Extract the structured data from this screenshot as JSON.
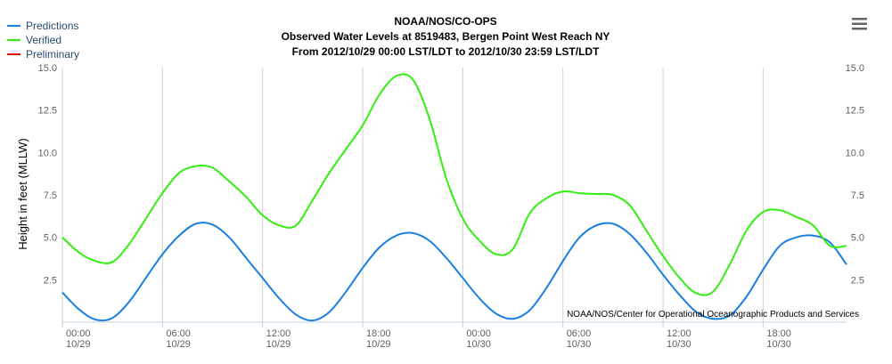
{
  "menu": {
    "icon": "menu-icon"
  },
  "credit": "NOAA/NOS/Center for Operational Oceanographic Products and Services",
  "chart_data": {
    "type": "line",
    "title": "NOAA/NOS/CO-OPS",
    "subtitle_lines": [
      "Observed Water Levels at 8519483, Bergen Point West Reach NY",
      "From 2012/10/29 00:00 LST/LDT to 2012/10/30 23:59 LST/LDT"
    ],
    "ylabel": "Height in feet (MLLW)",
    "ylim": [
      0,
      15
    ],
    "xlim_hours": [
      0,
      47
    ],
    "yticks": [
      "15.0",
      "12.5",
      "10.0",
      "7.5",
      "5.0",
      "2.5"
    ],
    "ytick_values": [
      15,
      12.5,
      10,
      7.5,
      5,
      2.5
    ],
    "xticks": [
      {
        "hour": 0,
        "time": "00:00",
        "date": "10/29"
      },
      {
        "hour": 6,
        "time": "06:00",
        "date": "10/29"
      },
      {
        "hour": 12,
        "time": "12:00",
        "date": "10/29"
      },
      {
        "hour": 18,
        "time": "18:00",
        "date": "10/29"
      },
      {
        "hour": 24,
        "time": "00:00",
        "date": "10/30"
      },
      {
        "hour": 30,
        "time": "06:00",
        "date": "10/30"
      },
      {
        "hour": 36,
        "time": "12:00",
        "date": "10/30"
      },
      {
        "hour": 42,
        "time": "18:00",
        "date": "10/30"
      }
    ],
    "legend": {
      "placement": "top-left"
    },
    "grid": {
      "x": true,
      "y": false
    },
    "series": [
      {
        "name": "Predictions",
        "color": "#1a7fe0",
        "x": [
          0,
          1,
          2,
          3,
          4,
          5,
          6,
          7,
          8,
          9,
          10,
          11,
          12,
          13,
          14,
          15,
          16,
          17,
          18,
          19,
          20,
          21,
          22,
          23,
          24,
          25,
          26,
          27,
          28,
          29,
          30,
          31,
          32,
          33,
          34,
          35,
          36,
          37,
          38,
          39,
          40,
          41,
          42,
          43,
          44,
          45,
          46,
          47
        ],
        "values": [
          1.75,
          0.75,
          0.15,
          0.25,
          1.2,
          2.6,
          4.0,
          5.1,
          5.8,
          5.75,
          5.0,
          3.8,
          2.6,
          1.4,
          0.45,
          0.1,
          0.6,
          1.8,
          3.2,
          4.4,
          5.1,
          5.25,
          4.8,
          3.8,
          2.6,
          1.4,
          0.5,
          0.2,
          0.7,
          2.0,
          3.6,
          5.0,
          5.7,
          5.8,
          5.2,
          4.1,
          2.8,
          1.6,
          0.6,
          0.2,
          0.4,
          1.5,
          3.1,
          4.5,
          5.0,
          5.1,
          4.7,
          3.4
        ]
      },
      {
        "name": "Verified",
        "color": "#33ee11",
        "x": [
          0,
          1,
          2,
          3,
          4,
          5,
          6,
          7,
          8,
          9,
          10,
          11,
          12,
          13,
          14,
          15,
          16,
          17,
          18,
          19,
          20,
          21,
          22,
          23,
          24,
          25,
          26,
          27,
          28,
          29,
          30,
          31,
          32,
          33,
          34,
          35,
          36,
          37,
          38,
          39,
          40,
          41,
          42,
          43,
          44,
          45,
          46,
          47
        ],
        "values": [
          5.0,
          4.1,
          3.6,
          3.55,
          4.6,
          6.1,
          7.6,
          8.8,
          9.2,
          9.1,
          8.3,
          7.4,
          6.3,
          5.7,
          5.7,
          7.2,
          8.8,
          10.2,
          11.6,
          13.4,
          14.5,
          14.3,
          12.0,
          8.5,
          6.1,
          4.8,
          4.0,
          4.3,
          6.4,
          7.3,
          7.7,
          7.6,
          7.55,
          7.5,
          6.9,
          5.4,
          3.9,
          2.6,
          1.7,
          1.8,
          3.4,
          5.4,
          6.5,
          6.6,
          6.2,
          5.7,
          4.5,
          4.5
        ]
      },
      {
        "name": "Preliminary",
        "color": "#dd1111",
        "x": [],
        "values": []
      }
    ]
  }
}
